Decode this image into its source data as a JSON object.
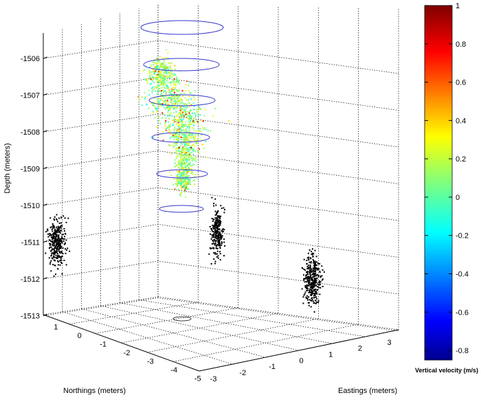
{
  "chart_data": {
    "type": "scatter3d",
    "title": "",
    "zlabel": "Depth (meters)",
    "ylabel": "Northings (meters)",
    "xlabel": "Eastings (meters)",
    "zticks": [
      -1506,
      -1507,
      -1508,
      -1509,
      -1510,
      -1511,
      -1512,
      -1513
    ],
    "yticks": [
      1,
      0,
      -1,
      -2,
      -3,
      -4,
      -5
    ],
    "xticks": [
      -3,
      -2,
      -1,
      0,
      1,
      2,
      3
    ],
    "zlim": [
      -1513.3,
      -1505.2
    ],
    "grid": true,
    "colorbar": {
      "label": "Vertical velocity (m/s)",
      "ticks": [
        1,
        0.8,
        0.6,
        0.4,
        0.2,
        0,
        -0.2,
        -0.4,
        -0.6,
        -0.8
      ],
      "range": [
        -0.85,
        1.0
      ],
      "colormap": "jet"
    },
    "series": [
      {
        "kind": "velocity-scatter",
        "center_depth": -1507.8,
        "depth_range": [
          -1509.5,
          -1506.1
        ],
        "color": "jet"
      },
      {
        "kind": "projection",
        "plane": "northing",
        "depth_range": [
          -1510.7,
          -1511.7
        ],
        "color": "#000000"
      },
      {
        "kind": "projection",
        "plane": "easting",
        "depth_range": [
          -1510.0,
          -1511.5
        ],
        "color": "#000000"
      },
      {
        "kind": "projection",
        "plane": "floor",
        "depth_range": [
          -1511.4,
          -1512.9
        ],
        "color": "#000000"
      }
    ],
    "rings": {
      "color": "#3333cc",
      "count": 6
    }
  }
}
